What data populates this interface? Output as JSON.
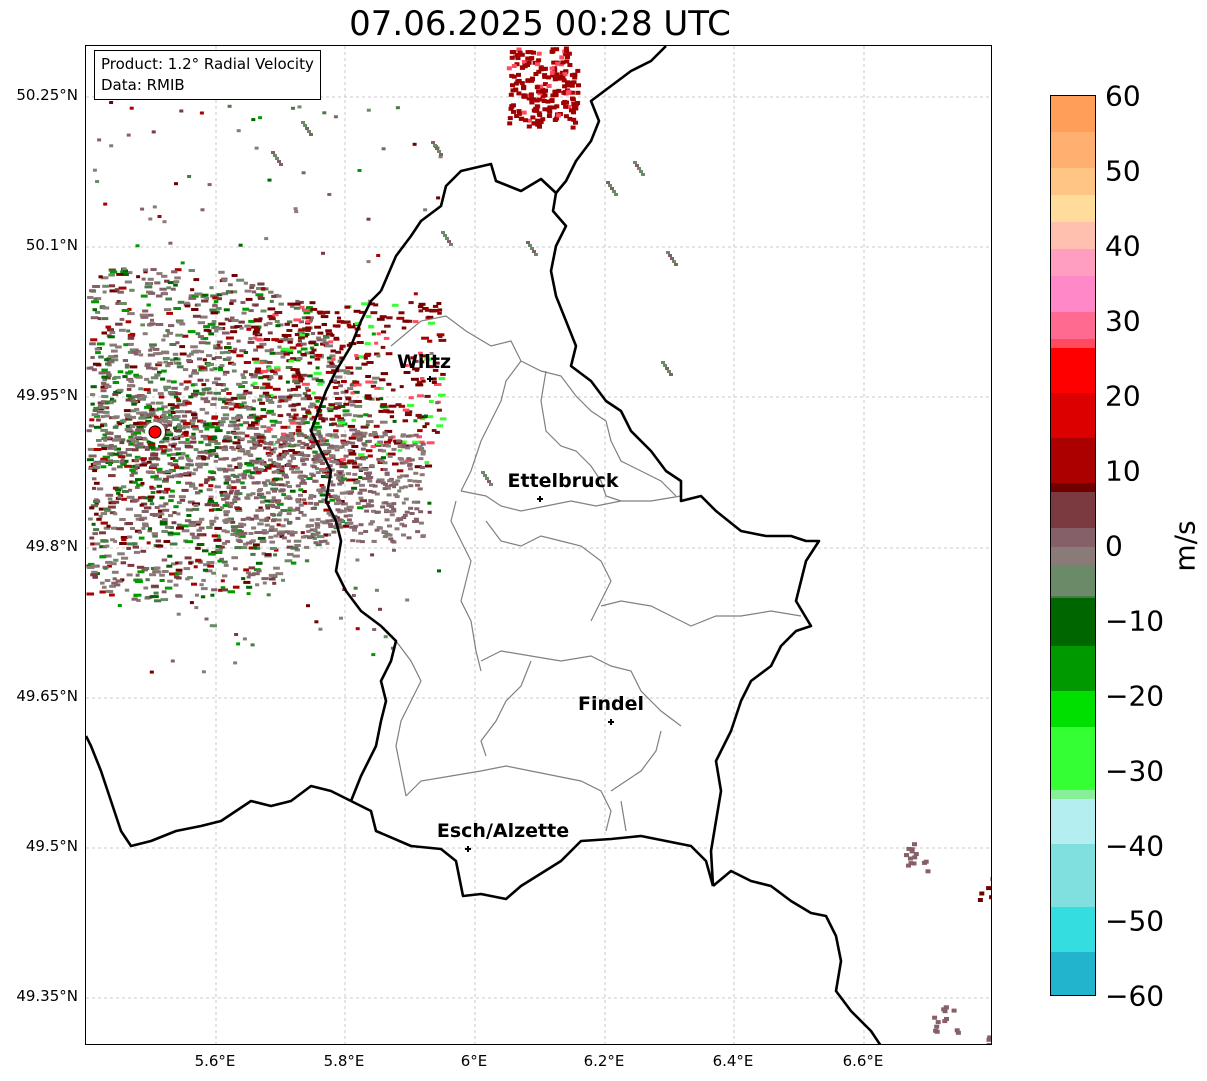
{
  "title": "07.06.2025 00:28 UTC",
  "info": {
    "product": "Product: 1.2° Radial Velocity",
    "data": "Data: RMIB"
  },
  "lat_labels": [
    "50.25°N",
    "50.1°N",
    "49.95°N",
    "49.8°N",
    "49.65°N",
    "49.5°N",
    "49.35°N"
  ],
  "lon_labels": [
    "5.6°E",
    "5.8°E",
    "6°E",
    "6.2°E",
    "6.4°E",
    "6.6°E"
  ],
  "cities": [
    {
      "name": "Wiltz"
    },
    {
      "name": "Ettelbruck"
    },
    {
      "name": "Findel"
    },
    {
      "name": "Esch/Alzette"
    }
  ],
  "colorbar": {
    "unit": "m/s",
    "ticks": [
      "60",
      "50",
      "40",
      "30",
      "20",
      "10",
      "0",
      "−10",
      "−20",
      "−30",
      "−40",
      "−50",
      "−60"
    ],
    "range": [
      -60,
      60
    ]
  },
  "colors": {
    "border_country": "#000000",
    "border_canton": "#808080",
    "radar_site": "#ff0000"
  }
}
